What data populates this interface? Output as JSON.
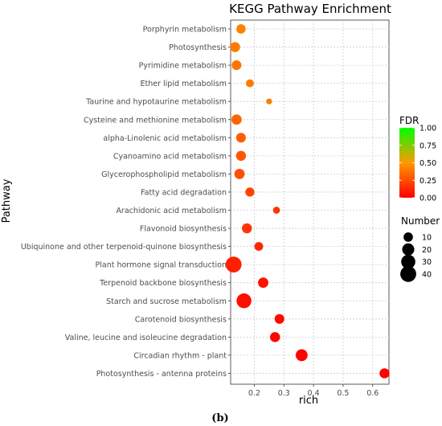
{
  "chart_data": {
    "type": "scatter",
    "title": "KEGG Pathway Enrichment",
    "xlabel": "rich",
    "ylabel": "Pathway",
    "xlim": [
      0.12,
      0.655
    ],
    "xticks": [
      "0.2",
      "0.3",
      "0.4",
      "0.5",
      "0.6"
    ],
    "grid": true,
    "categories": [
      "Porphyrin metabolism",
      "Photosynthesis",
      "Pyrimidine metabolism",
      "Ether lipid metabolism",
      "Taurine and hypotaurine metabolism",
      "Cysteine and methionine metabolism",
      "alpha-Linolenic acid metabolism",
      "Cyanoamino acid metabolism",
      "Glycerophospholipid metabolism",
      "Fatty acid degradation",
      "Arachidonic acid metabolism",
      "Flavonoid biosynthesis",
      "Ubiquinone and other terpenoid-quinone biosynthesis",
      "Plant hormone signal transduction",
      "Terpenoid backbone biosynthesis",
      "Starch and sucrose metabolism",
      "Carotenoid biosynthesis",
      "Valine, leucine and isoleucine degradation",
      "Circadian rhythm - plant",
      "Photosynthesis - antenna proteins"
    ],
    "points": [
      {
        "pathway": "Porphyrin metabolism",
        "rich": 0.155,
        "number": 10,
        "fdr": 0.42
      },
      {
        "pathway": "Photosynthesis",
        "rich": 0.135,
        "number": 12,
        "fdr": 0.4
      },
      {
        "pathway": "Pyrimidine metabolism",
        "rich": 0.14,
        "number": 11,
        "fdr": 0.38
      },
      {
        "pathway": "Ether lipid metabolism",
        "rich": 0.185,
        "number": 6,
        "fdr": 0.4
      },
      {
        "pathway": "Taurine and hypotaurine metabolism",
        "rich": 0.25,
        "number": 2,
        "fdr": 0.4
      },
      {
        "pathway": "Cysteine and methionine metabolism",
        "rich": 0.14,
        "number": 13,
        "fdr": 0.33
      },
      {
        "pathway": "alpha-Linolenic acid metabolism",
        "rich": 0.155,
        "number": 11,
        "fdr": 0.3
      },
      {
        "pathway": "Cyanoamino acid metabolism",
        "rich": 0.155,
        "number": 12,
        "fdr": 0.28
      },
      {
        "pathway": "Glycerophospholipid metabolism",
        "rich": 0.15,
        "number": 13,
        "fdr": 0.26
      },
      {
        "pathway": "Fatty acid degradation",
        "rich": 0.185,
        "number": 9,
        "fdr": 0.22
      },
      {
        "pathway": "Arachidonic acid metabolism",
        "rich": 0.275,
        "number": 4,
        "fdr": 0.18
      },
      {
        "pathway": "Flavonoid biosynthesis",
        "rich": 0.175,
        "number": 12,
        "fdr": 0.17
      },
      {
        "pathway": "Ubiquinone and other terpenoid-quinone biosynthesis",
        "rich": 0.215,
        "number": 8,
        "fdr": 0.12
      },
      {
        "pathway": "Plant hormone signal transduction",
        "rich": 0.13,
        "number": 40,
        "fdr": 0.1
      },
      {
        "pathway": "Terpenoid backbone biosynthesis",
        "rich": 0.23,
        "number": 13,
        "fdr": 0.06
      },
      {
        "pathway": "Starch and sucrose metabolism",
        "rich": 0.165,
        "number": 34,
        "fdr": 0.05
      },
      {
        "pathway": "Carotenoid biosynthesis",
        "rich": 0.285,
        "number": 11,
        "fdr": 0.03
      },
      {
        "pathway": "Valine, leucine and isoleucine degradation",
        "rich": 0.27,
        "number": 12,
        "fdr": 0.02
      },
      {
        "pathway": "Circadian rhythm - plant",
        "rich": 0.36,
        "number": 19,
        "fdr": 0.01
      },
      {
        "pathway": "Photosynthesis - antenna proteins",
        "rich": 0.64,
        "number": 12,
        "fdr": 0.005
      }
    ],
    "color_legend": {
      "title": "FDR",
      "ticks": [
        "1.00",
        "0.75",
        "0.50",
        "0.25",
        "0.00"
      ],
      "colors": {
        "high": "#00ff00",
        "mid": "#ff9900",
        "low": "#ff0000"
      }
    },
    "size_legend": {
      "title": "Number",
      "ticks": [
        "10",
        "20",
        "30",
        "40"
      ]
    }
  },
  "caption": "(b)"
}
